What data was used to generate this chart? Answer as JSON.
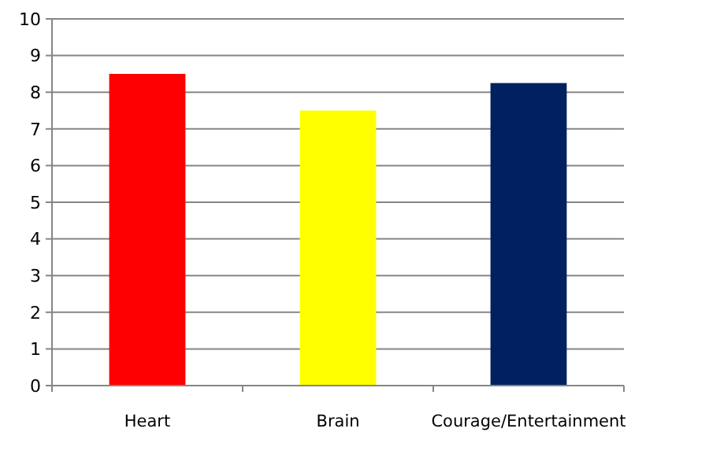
{
  "chart_data": {
    "type": "bar",
    "categories": [
      "Heart",
      "Brain",
      "Courage/Entertainment"
    ],
    "values": [
      8.5,
      7.5,
      8.25
    ],
    "colors": [
      "#ff0000",
      "#ffff00",
      "#002060"
    ],
    "ylim": [
      0,
      10
    ],
    "yticks": [
      0,
      1,
      2,
      3,
      4,
      5,
      6,
      7,
      8,
      9,
      10
    ],
    "grid": "y"
  }
}
